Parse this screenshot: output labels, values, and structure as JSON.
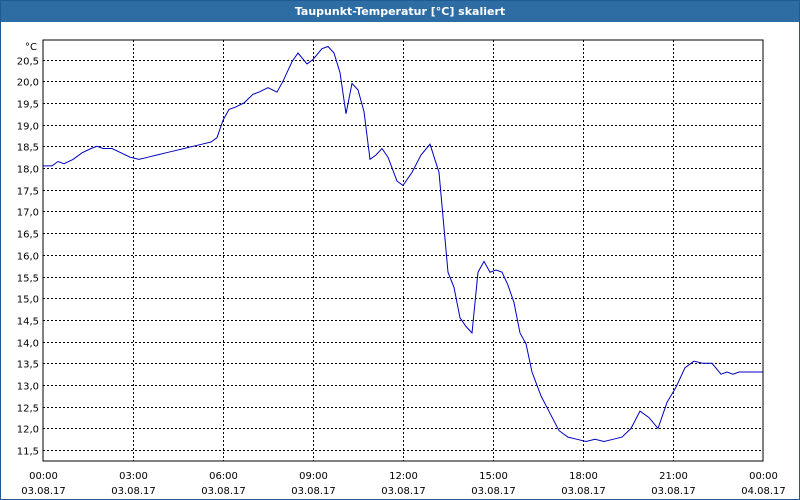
{
  "window": {
    "title": "Taupunkt-Temperatur [°C] skaliert"
  },
  "chart_data": {
    "type": "line",
    "title": "Taupunkt-Temperatur [°C] skaliert",
    "ylabel": "°C",
    "xlabel": "",
    "xlim": [
      "03.08.17 00:00",
      "04.08.17 00:00"
    ],
    "ylim": [
      11.25,
      20.95
    ],
    "grid": true,
    "line_color": "#0000c0",
    "y_ticks": [
      "11,5",
      "12,0",
      "12,5",
      "13,0",
      "13,5",
      "14,0",
      "14,5",
      "15,0",
      "15,5",
      "16,0",
      "16,5",
      "17,0",
      "17,5",
      "18,0",
      "18,5",
      "19,0",
      "19,5",
      "20,0",
      "20,5"
    ],
    "x_ticks": [
      {
        "time": "00:00",
        "date": "03.08.17",
        "h": 0
      },
      {
        "time": "03:00",
        "date": "03.08.17",
        "h": 3
      },
      {
        "time": "06:00",
        "date": "03.08.17",
        "h": 6
      },
      {
        "time": "09:00",
        "date": "03.08.17",
        "h": 9
      },
      {
        "time": "12:00",
        "date": "03.08.17",
        "h": 12
      },
      {
        "time": "15:00",
        "date": "03.08.17",
        "h": 15
      },
      {
        "time": "18:00",
        "date": "03.08.17",
        "h": 18
      },
      {
        "time": "21:00",
        "date": "03.08.17",
        "h": 21
      },
      {
        "time": "00:00",
        "date": "04.08.17",
        "h": 24
      }
    ],
    "x_unit": "hours on 03.08.17",
    "x": [
      0,
      0.3,
      0.5,
      0.7,
      1,
      1.3,
      1.6,
      1.8,
      2,
      2.3,
      2.6,
      2.9,
      3.2,
      3.5,
      3.8,
      4.1,
      4.4,
      4.7,
      5,
      5.3,
      5.6,
      5.8,
      6,
      6.2,
      6.4,
      6.7,
      7,
      7.2,
      7.5,
      7.8,
      8,
      8.3,
      8.5,
      8.8,
      9,
      9.3,
      9.5,
      9.7,
      9.9,
      10.1,
      10.3,
      10.5,
      10.7,
      10.9,
      11.1,
      11.3,
      11.5,
      11.8,
      12,
      12.3,
      12.6,
      12.9,
      13.2,
      13.5,
      13.7,
      13.9,
      14.1,
      14.3,
      14.5,
      14.7,
      14.9,
      15.1,
      15.3,
      15.5,
      15.7,
      15.9,
      16.1,
      16.3,
      16.6,
      16.9,
      17.2,
      17.5,
      17.8,
      18.1,
      18.4,
      18.7,
      19,
      19.3,
      19.6,
      19.9,
      20.2,
      20.5,
      20.8,
      21.1,
      21.4,
      21.7,
      22,
      22.3,
      22.6,
      22.8,
      23,
      23.2,
      23.4,
      23.6,
      23.8,
      24
    ],
    "y": [
      18.05,
      18.05,
      18.15,
      18.1,
      18.2,
      18.35,
      18.45,
      18.5,
      18.45,
      18.45,
      18.35,
      18.25,
      18.2,
      18.25,
      18.3,
      18.35,
      18.4,
      18.45,
      18.5,
      18.55,
      18.6,
      18.7,
      19.1,
      19.35,
      19.4,
      19.5,
      19.7,
      19.75,
      19.85,
      19.75,
      20.0,
      20.45,
      20.65,
      20.4,
      20.5,
      20.75,
      20.8,
      20.65,
      20.2,
      19.25,
      19.95,
      19.8,
      19.3,
      18.2,
      18.3,
      18.45,
      18.25,
      17.7,
      17.6,
      17.9,
      18.3,
      18.55,
      17.9,
      15.6,
      15.25,
      14.55,
      14.35,
      14.2,
      15.6,
      15.85,
      15.6,
      15.65,
      15.6,
      15.3,
      14.9,
      14.2,
      13.95,
      13.3,
      12.75,
      12.35,
      11.95,
      11.8,
      11.75,
      11.7,
      11.75,
      11.7,
      11.75,
      11.8,
      12.0,
      12.4,
      12.25,
      12.0,
      12.6,
      12.95,
      13.4,
      13.55,
      13.5,
      13.5,
      13.25,
      13.3,
      13.25,
      13.3,
      13.3,
      13.3,
      13.3,
      13.3
    ]
  }
}
